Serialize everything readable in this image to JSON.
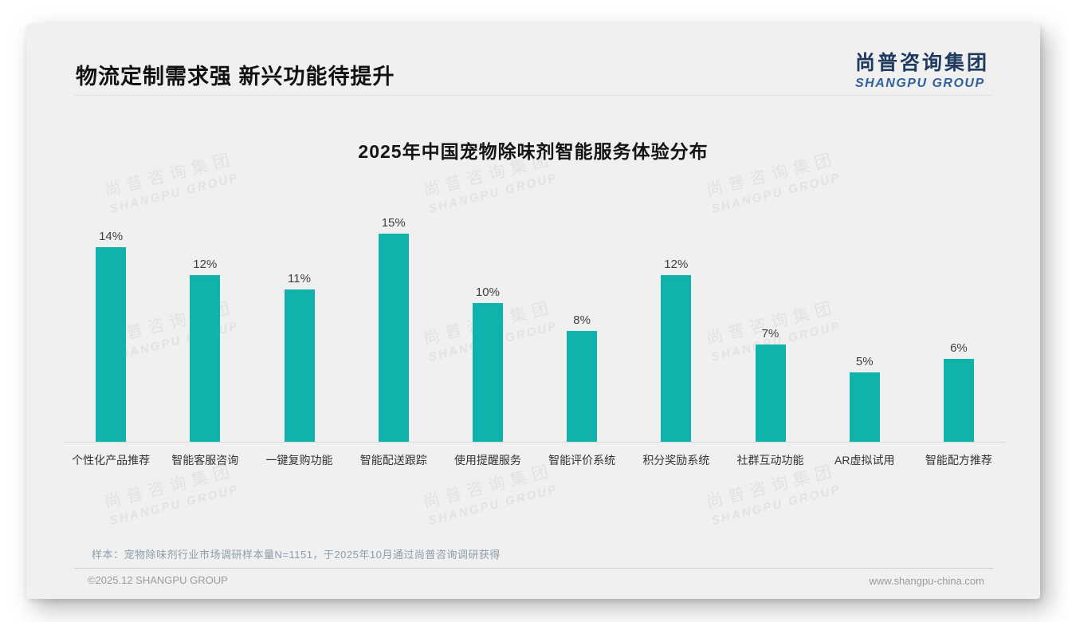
{
  "header": {
    "title": "物流定制需求强 新兴功能待提升"
  },
  "logo": {
    "cn": "尚普咨询集团",
    "en": "SHANGPU GROUP"
  },
  "watermark": {
    "cn": "尚普咨询集团",
    "en": "SHANGPU GROUP"
  },
  "chart_data": {
    "type": "bar",
    "title": "2025年中国宠物除味剂智能服务体验分布",
    "categories": [
      "个性化产品推荐",
      "智能客服咨询",
      "一键复购功能",
      "智能配送跟踪",
      "使用提醒服务",
      "智能评价系统",
      "积分奖励系统",
      "社群互动功能",
      "AR虚拟试用",
      "智能配方推荐"
    ],
    "values": [
      14,
      12,
      11,
      15,
      10,
      8,
      12,
      7,
      5,
      6
    ],
    "data_labels": [
      "14%",
      "12%",
      "11%",
      "15%",
      "10%",
      "8%",
      "12%",
      "7%",
      "5%",
      "6%"
    ],
    "unit": "%",
    "ylim": [
      0,
      16
    ],
    "bar_color": "#0fb3ac",
    "grid": false,
    "legend": "none",
    "xlabel": "",
    "ylabel": ""
  },
  "note": "样本：宠物除味剂行业市场调研样本量N=1151，于2025年10月通过尚普咨询调研获得",
  "footer": {
    "copyright": "©2025.12 SHANGPU GROUP",
    "website": "www.shangpu-china.com"
  },
  "colors": {
    "bar": "#0fb3ac",
    "slide_background": "#f0f0f0",
    "logo_cn": "#1e3a5e",
    "logo_en": "#2f619f",
    "note_text": "#8c9dab"
  }
}
